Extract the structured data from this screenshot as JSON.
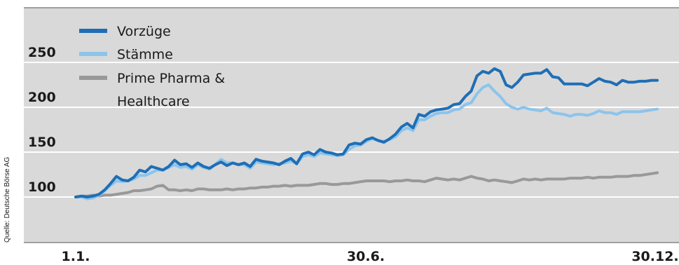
{
  "source_note": "Quelle: Deutsche Börse AG",
  "chart_data": {
    "type": "line",
    "title": "",
    "xlabel": "",
    "ylabel": "",
    "x_ticks": [
      "1.1.",
      "30.6.",
      "30.12."
    ],
    "y_ticks": [
      100,
      150,
      200,
      250
    ],
    "ylim": [
      50,
      260
    ],
    "grid": true,
    "legend_position": "top-left",
    "background_color": "#d9d9d9",
    "series": [
      {
        "name": "Vorzüge",
        "color": "#1f6eb5",
        "x": [
          0,
          1,
          2,
          3,
          4,
          5,
          6,
          7,
          8,
          9,
          10,
          11,
          12,
          13,
          14,
          15,
          16,
          17,
          18,
          19,
          20,
          21,
          22,
          23,
          24,
          25,
          26,
          27,
          28,
          29,
          30,
          31,
          32,
          33,
          34,
          35,
          36,
          37,
          38,
          39,
          40,
          41,
          42,
          43,
          44,
          45,
          46,
          47,
          48,
          49,
          50,
          51,
          52,
          53,
          54,
          55,
          56,
          57,
          58,
          59,
          60,
          61,
          62,
          63,
          64,
          65,
          66,
          67,
          68,
          69,
          70,
          71,
          72,
          73,
          74,
          75,
          76,
          77,
          78,
          79,
          80,
          81,
          82,
          83,
          84,
          85,
          86,
          87,
          88,
          89,
          90,
          91,
          92,
          93,
          94,
          95,
          96,
          97,
          98,
          99,
          100
        ],
        "values": [
          100,
          101,
          100,
          101,
          103,
          108,
          115,
          123,
          119,
          118,
          122,
          130,
          128,
          134,
          132,
          130,
          134,
          141,
          136,
          137,
          133,
          138,
          134,
          132,
          136,
          139,
          135,
          138,
          136,
          138,
          134,
          142,
          140,
          139,
          138,
          136,
          140,
          143,
          137,
          148,
          150,
          147,
          153,
          150,
          149,
          147,
          148,
          158,
          160,
          159,
          164,
          166,
          163,
          161,
          165,
          170,
          178,
          182,
          177,
          192,
          190,
          195,
          197,
          198,
          199,
          203,
          204,
          212,
          218,
          235,
          240,
          238,
          243,
          240,
          225,
          222,
          228,
          236,
          237,
          238,
          238,
          242,
          234,
          233,
          226,
          226,
          226,
          226,
          224,
          228,
          232,
          229,
          228,
          225,
          230,
          228,
          228,
          229,
          229,
          230,
          230
        ]
      },
      {
        "name": "Stämme",
        "color": "#8cc4ec",
        "x": [
          0,
          1,
          2,
          3,
          4,
          5,
          6,
          7,
          8,
          9,
          10,
          11,
          12,
          13,
          14,
          15,
          16,
          17,
          18,
          19,
          20,
          21,
          22,
          23,
          24,
          25,
          26,
          27,
          28,
          29,
          30,
          31,
          32,
          33,
          34,
          35,
          36,
          37,
          38,
          39,
          40,
          41,
          42,
          43,
          44,
          45,
          46,
          47,
          48,
          49,
          50,
          51,
          52,
          53,
          54,
          55,
          56,
          57,
          58,
          59,
          60,
          61,
          62,
          63,
          64,
          65,
          66,
          67,
          68,
          69,
          70,
          71,
          72,
          73,
          74,
          75,
          76,
          77,
          78,
          79,
          80,
          81,
          82,
          83,
          84,
          85,
          86,
          87,
          88,
          89,
          90,
          91,
          92,
          93,
          94,
          95,
          96,
          97,
          98,
          99,
          100
        ],
        "values": [
          100,
          100,
          98,
          99,
          102,
          107,
          113,
          118,
          117,
          118,
          120,
          124,
          124,
          127,
          130,
          130,
          133,
          136,
          133,
          134,
          131,
          136,
          133,
          131,
          136,
          142,
          138,
          138,
          136,
          136,
          132,
          139,
          138,
          137,
          136,
          137,
          138,
          140,
          137,
          145,
          147,
          145,
          149,
          148,
          147,
          146,
          147,
          153,
          157,
          158,
          162,
          165,
          163,
          162,
          164,
          167,
          174,
          177,
          174,
          186,
          186,
          190,
          193,
          194,
          194,
          197,
          198,
          203,
          205,
          215,
          222,
          225,
          218,
          212,
          204,
          200,
          198,
          200,
          198,
          197,
          196,
          199,
          194,
          193,
          192,
          190,
          192,
          192,
          191,
          193,
          196,
          194,
          194,
          192,
          195,
          195,
          195,
          195,
          196,
          197,
          198
        ]
      },
      {
        "name": "Prime Pharma & Healthcare",
        "color": "#999999",
        "x": [
          0,
          1,
          2,
          3,
          4,
          5,
          6,
          7,
          8,
          9,
          10,
          11,
          12,
          13,
          14,
          15,
          16,
          17,
          18,
          19,
          20,
          21,
          22,
          23,
          24,
          25,
          26,
          27,
          28,
          29,
          30,
          31,
          32,
          33,
          34,
          35,
          36,
          37,
          38,
          39,
          40,
          41,
          42,
          43,
          44,
          45,
          46,
          47,
          48,
          49,
          50,
          51,
          52,
          53,
          54,
          55,
          56,
          57,
          58,
          59,
          60,
          61,
          62,
          63,
          64,
          65,
          66,
          67,
          68,
          69,
          70,
          71,
          72,
          73,
          74,
          75,
          76,
          77,
          78,
          79,
          80,
          81,
          82,
          83,
          84,
          85,
          86,
          87,
          88,
          89,
          90,
          91,
          92,
          93,
          94,
          95,
          96,
          97,
          98,
          99,
          100
        ],
        "values": [
          100,
          101,
          101,
          102,
          101,
          102,
          102,
          103,
          104,
          105,
          107,
          107,
          108,
          109,
          112,
          113,
          108,
          108,
          107,
          108,
          107,
          109,
          109,
          108,
          108,
          108,
          109,
          108,
          109,
          109,
          110,
          110,
          111,
          111,
          112,
          112,
          113,
          112,
          113,
          113,
          113,
          114,
          115,
          115,
          114,
          114,
          115,
          115,
          116,
          117,
          118,
          118,
          118,
          118,
          117,
          118,
          118,
          119,
          118,
          118,
          117,
          119,
          121,
          120,
          119,
          120,
          119,
          121,
          123,
          121,
          120,
          118,
          119,
          118,
          117,
          116,
          118,
          120,
          119,
          120,
          119,
          120,
          120,
          120,
          120,
          121,
          121,
          121,
          122,
          121,
          122,
          122,
          122,
          123,
          123,
          123,
          124,
          124,
          125,
          126,
          127
        ]
      }
    ]
  }
}
